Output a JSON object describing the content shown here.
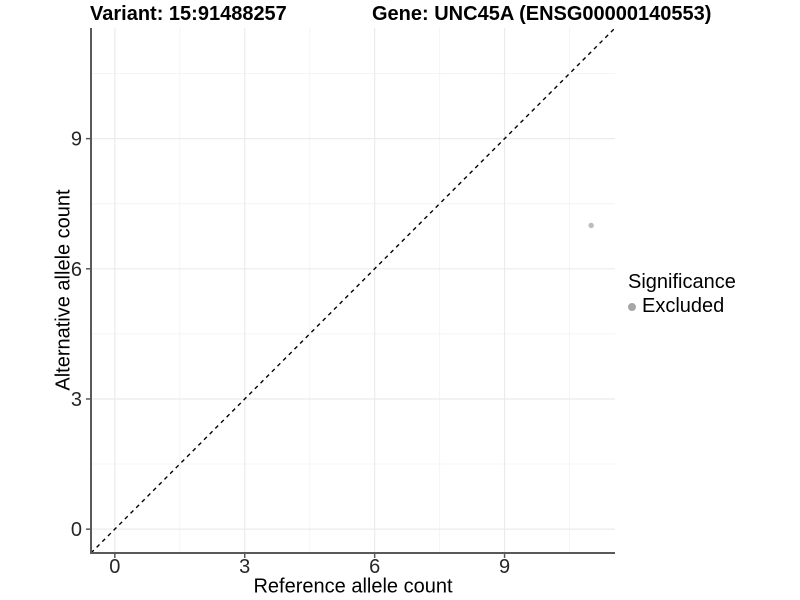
{
  "header": {
    "title_left": "Variant: 15:91488257",
    "title_right": "Gene: UNC45A (ENSG00000140553)"
  },
  "chart_data": {
    "type": "scatter",
    "xlabel": "Reference allele count",
    "ylabel": "Alternative allele count",
    "xlim": [
      -0.55,
      11.55
    ],
    "ylim": [
      -0.55,
      11.55
    ],
    "x_ticks": [
      0,
      3,
      6,
      9
    ],
    "y_ticks": [
      0,
      3,
      6,
      9
    ],
    "x_minor_ticks": [
      1.5,
      4.5,
      7.5,
      10.5
    ],
    "y_minor_ticks": [
      1.5,
      4.5,
      7.5,
      10.5
    ],
    "grid": true,
    "series": [
      {
        "name": "Excluded",
        "points": [
          {
            "x": 11,
            "y": 7
          }
        ],
        "color": "#bcbcbc"
      }
    ],
    "identity_line": {
      "from": [
        -0.55,
        -0.55
      ],
      "to": [
        11.55,
        11.55
      ],
      "style": "dashed",
      "color": "#000000"
    },
    "legend": {
      "position": "right",
      "title": "Significance",
      "items": [
        {
          "label": "Excluded",
          "color": "#a6a6a6"
        }
      ]
    },
    "colors": {
      "major_grid": "#ebebeb",
      "minor_grid": "#f4f4f4",
      "axis_line": "#595959",
      "tick_mark": "#595959",
      "tick_text": "#262626"
    }
  }
}
